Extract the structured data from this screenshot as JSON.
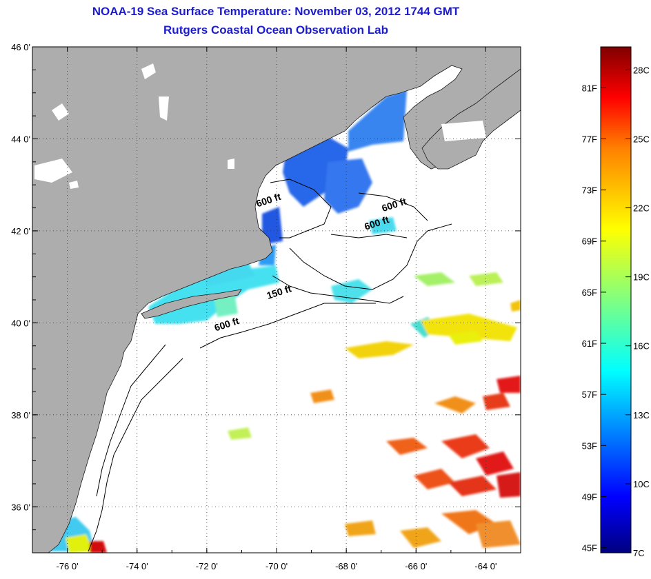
{
  "header": {
    "title": "NOAA-19 Sea Surface Temperature:  November 03, 2012 1744 GMT",
    "subtitle": "Rutgers Coastal Ocean Observation Lab"
  },
  "map": {
    "lon_range": [
      -77,
      -63
    ],
    "lat_range": [
      35,
      46
    ],
    "lon_ticks": [
      {
        "value": -76,
        "label": "-76 0'"
      },
      {
        "value": -74,
        "label": "-74 0'"
      },
      {
        "value": -72,
        "label": "-72 0'"
      },
      {
        "value": -70,
        "label": "-70 0'"
      },
      {
        "value": -68,
        "label": "-68 0'"
      },
      {
        "value": -66,
        "label": "-66 0'"
      },
      {
        "value": -64,
        "label": "-64 0'"
      }
    ],
    "lat_ticks": [
      {
        "value": 46,
        "label": "46 0'"
      },
      {
        "value": 44,
        "label": "44 0'"
      },
      {
        "value": 42,
        "label": "42 0'"
      },
      {
        "value": 40,
        "label": "40 0'"
      },
      {
        "value": 38,
        "label": "38 0'"
      },
      {
        "value": 36,
        "label": "36 0'"
      }
    ],
    "contour_labels": [
      {
        "text": "600 ft",
        "lon": -70.2,
        "lat": 42.6
      },
      {
        "text": "600 ft",
        "lon": -66.6,
        "lat": 42.5
      },
      {
        "text": "600 ft",
        "lon": -67.1,
        "lat": 42.1
      },
      {
        "text": "150 ft",
        "lon": -69.9,
        "lat": 40.6
      },
      {
        "text": "600 ft",
        "lon": -71.4,
        "lat": 39.9
      }
    ],
    "land_color": "#adadad",
    "ocean_color": "#ffffff"
  },
  "colorbar": {
    "min_celsius": 7,
    "max_celsius": 29,
    "fahrenheit_labels": [
      "45F",
      "49F",
      "53F",
      "57F",
      "61F",
      "65F",
      "69F",
      "73F",
      "77F",
      "81F"
    ],
    "celsius_labels": [
      "7C",
      "10C",
      "13C",
      "16C",
      "19C",
      "22C",
      "25C",
      "28C"
    ],
    "colors": [
      "#00007f",
      "#0000ff",
      "#0080ff",
      "#00ffff",
      "#80ff80",
      "#ffff00",
      "#ff8000",
      "#ff0000",
      "#7f0000"
    ]
  }
}
